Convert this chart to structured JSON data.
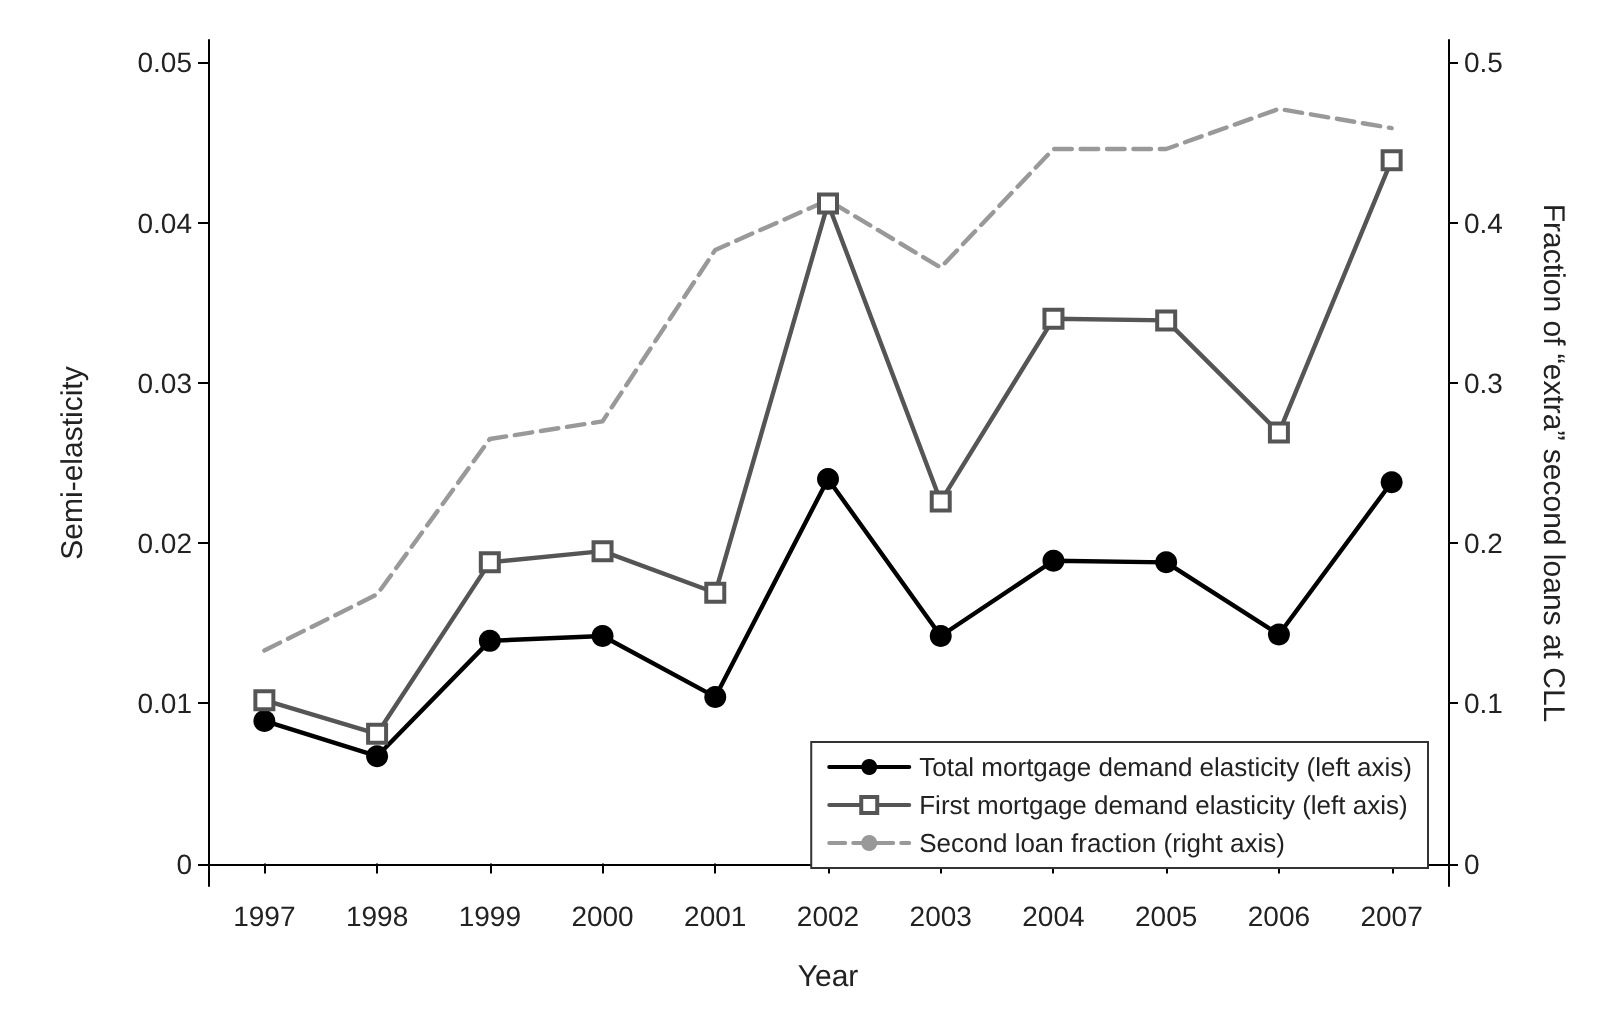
{
  "chart_data": {
    "type": "line",
    "xlabel": "Year",
    "ylabel": "Semi-elasticity",
    "y2label": "Fraction of “extra” second loans at CLL",
    "categories": [
      "1997",
      "1998",
      "1999",
      "2000",
      "2001",
      "2002",
      "2003",
      "2004",
      "2005",
      "2006",
      "2007"
    ],
    "series": [
      {
        "name": "Total mortgage demand elasticity (left axis)",
        "color": "#000000",
        "marker": "circle",
        "line_style": "solid",
        "values": [
          0.0089,
          0.0067,
          0.0139,
          0.0142,
          0.0104,
          0.024,
          0.0142,
          0.0189,
          0.0188,
          0.0143,
          0.0238
        ]
      },
      {
        "name": "First mortgage demand elasticity (left axis)",
        "color": "#555555",
        "marker": "square",
        "line_style": "solid",
        "values": [
          0.0102,
          0.0081,
          0.0188,
          0.0195,
          0.0169,
          0.0412,
          0.0226,
          0.034,
          0.0339,
          0.0269,
          0.0439
        ]
      },
      {
        "name": "Second loan fraction (right axis)",
        "color": "#999999",
        "marker": "none",
        "line_style": "dashed",
        "axis": "y2",
        "values": [
          0.133,
          0.168,
          0.265,
          0.276,
          0.383,
          0.414,
          0.372,
          0.446,
          0.446,
          0.471,
          0.459
        ]
      }
    ],
    "ylim": [
      -0.0014,
      0.0514
    ],
    "yticks": [
      0,
      0.01,
      0.02,
      0.03,
      0.04,
      0.05
    ],
    "y2lim": [
      -0.014,
      0.514
    ],
    "y2ticks": [
      0,
      0.1,
      0.2,
      0.3,
      0.4,
      0.5
    ],
    "grid": false,
    "legend": "bottom right"
  }
}
